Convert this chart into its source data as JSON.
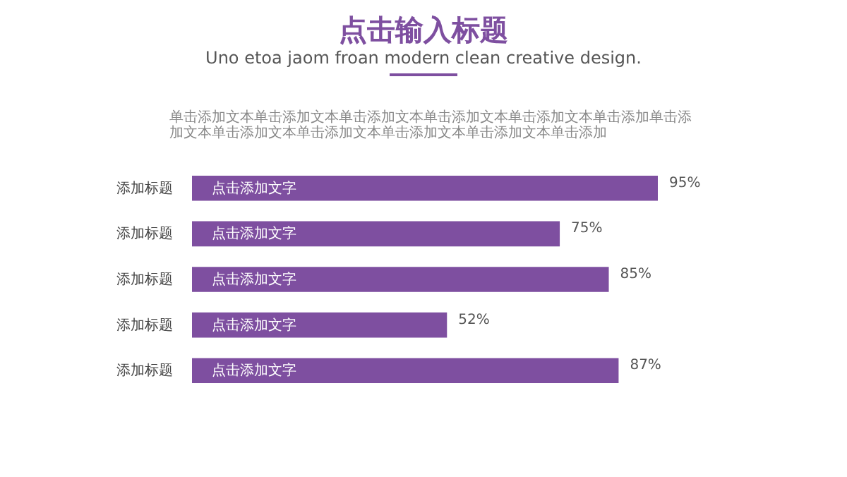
{
  "chart_data": {
    "type": "bar",
    "orientation": "horizontal",
    "title": "点击输入标题",
    "subtitle": "Uno etoa jaom froan modern clean creative design.",
    "annotations": [
      "单击添加文本单击添加文本单击添加文本单击添加文本单击添加文本单击添加单击添加文本单击添加文本单击添加文本单击添加文本单击添加文本单击添加",
      "点击添加文字",
      "点击添加文字",
      "点击添加文字",
      "点击添加文字",
      "点击添加文字"
    ],
    "categories": [
      "添加标题",
      "添加标题",
      "添加标题",
      "添加标题",
      "添加标题"
    ],
    "values": [
      95,
      75,
      85,
      52,
      87
    ],
    "value_labels": [
      "95%",
      "75%",
      "85%",
      "52%",
      "87%"
    ],
    "color": "#7e4fa0"
  }
}
